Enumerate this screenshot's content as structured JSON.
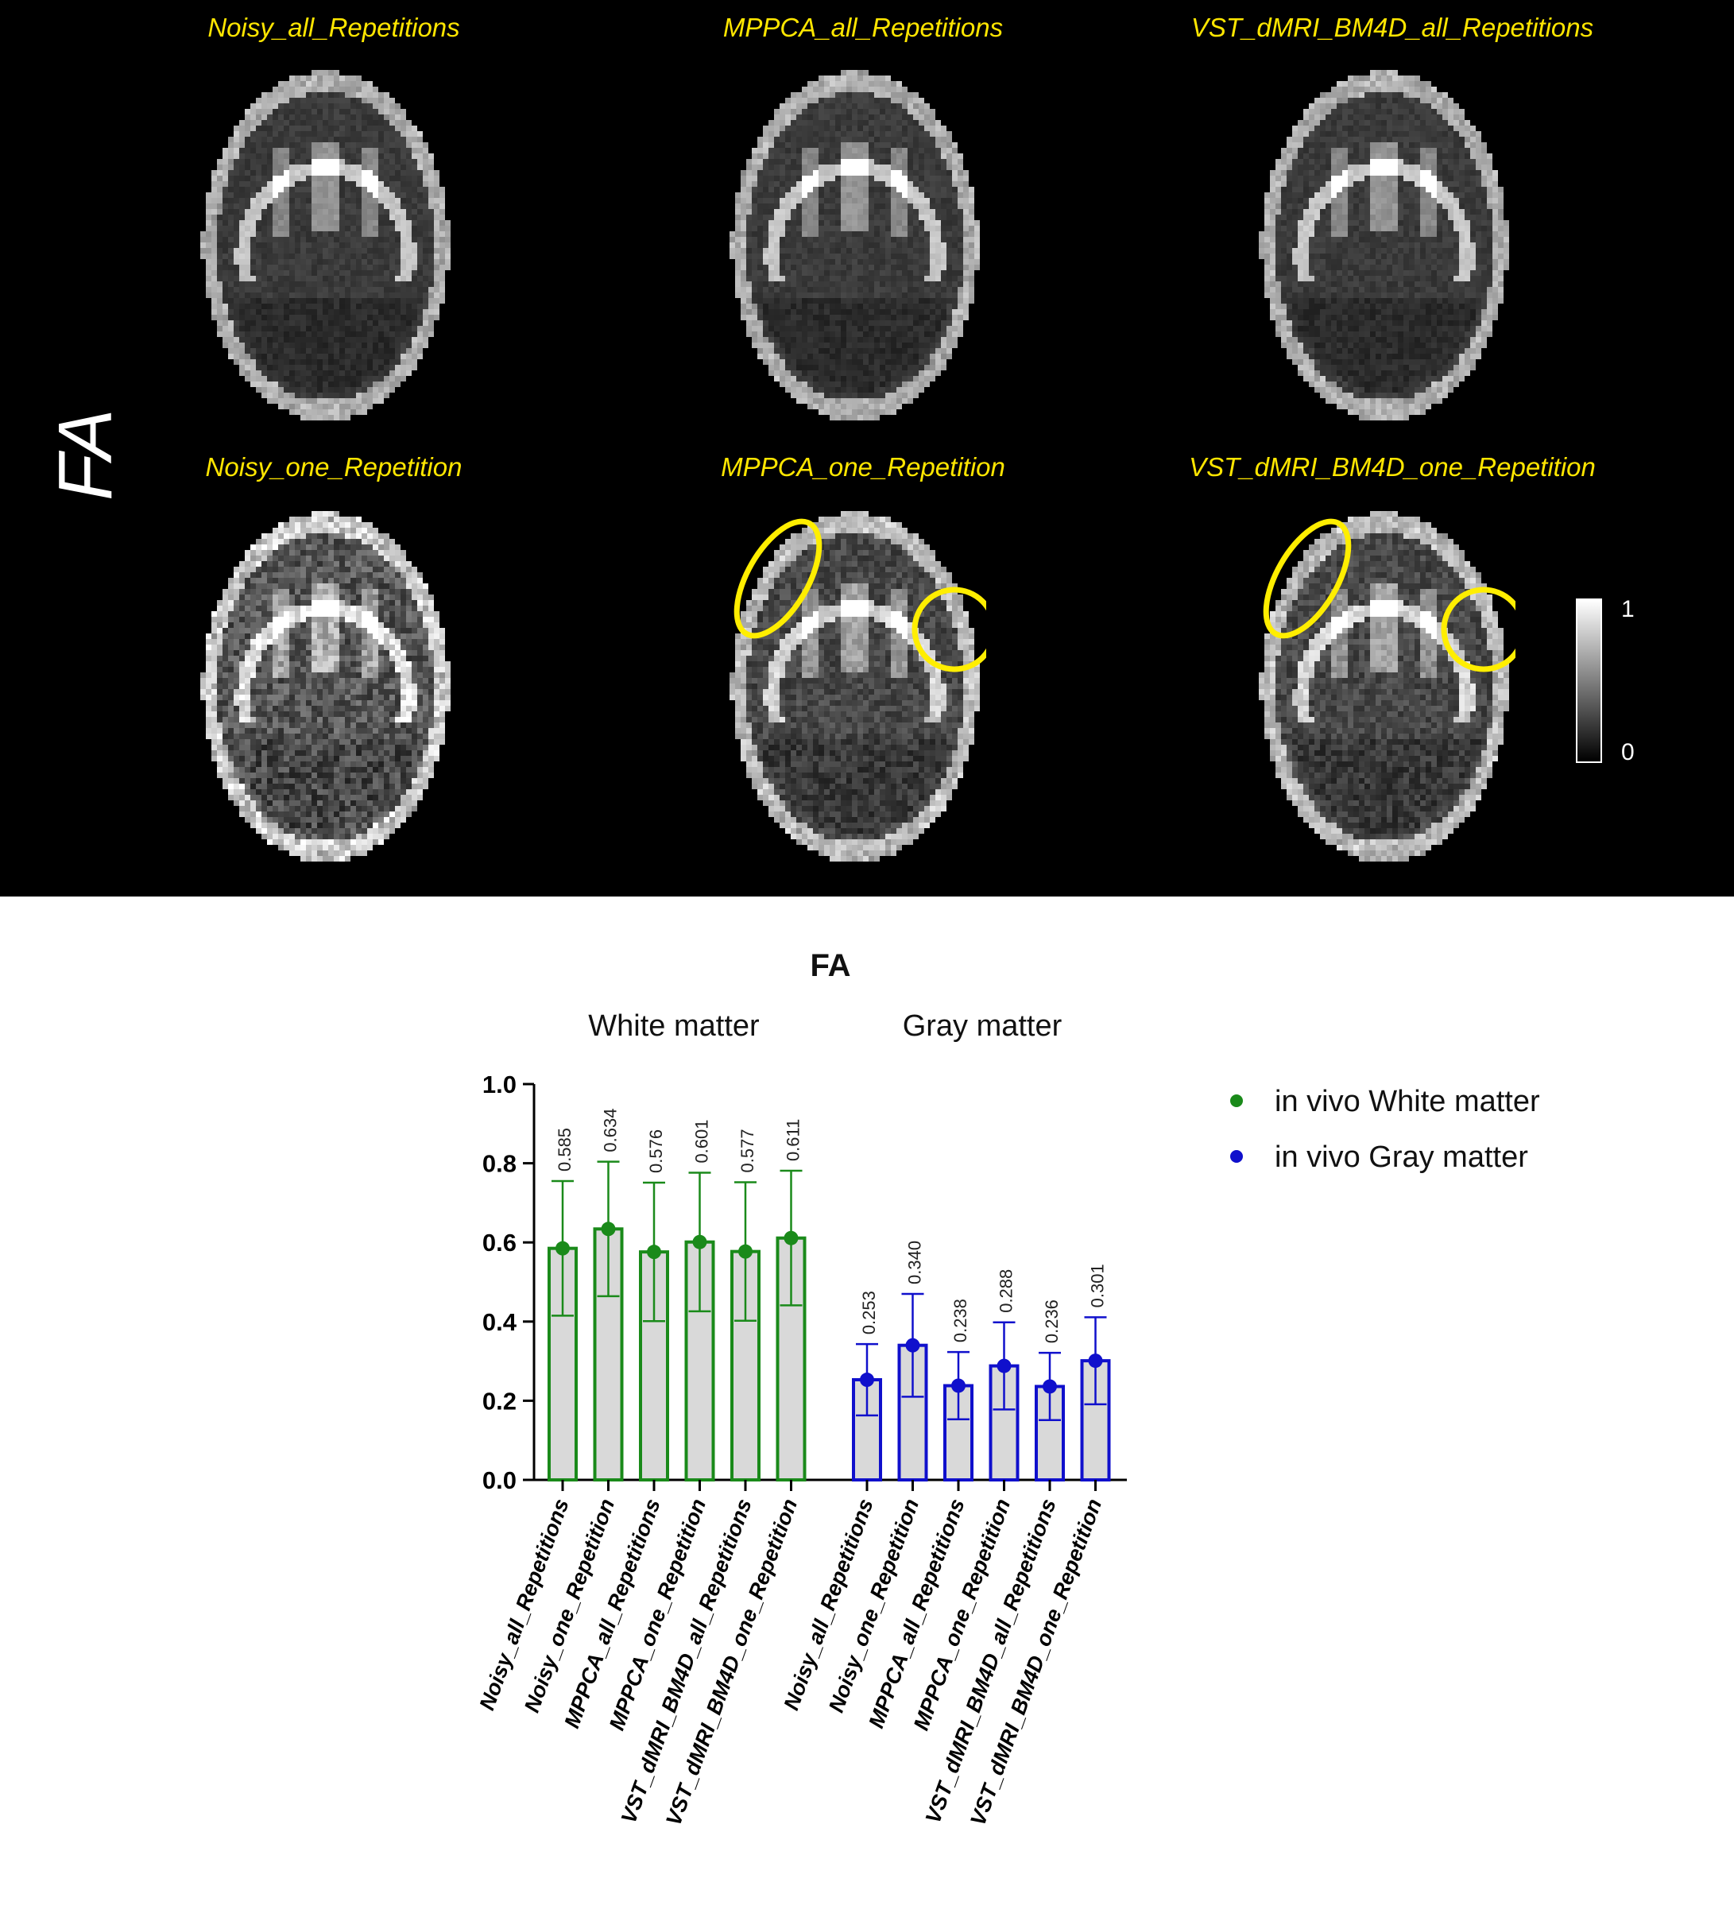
{
  "figure": {
    "side_label": "FA",
    "panels": [
      {
        "title": "Noisy_all_Repetitions",
        "noise": 0.1,
        "ellipse": false
      },
      {
        "title": "MPPCA_all_Repetitions",
        "noise": 0.1,
        "ellipse": false
      },
      {
        "title": "VST_dMRI_BM4D_all_Repetitions",
        "noise": 0.1,
        "ellipse": false
      },
      {
        "title": "Noisy_one_Repetition",
        "noise": 0.32,
        "ellipse": false
      },
      {
        "title": "MPPCA_one_Repetition",
        "noise": 0.2,
        "ellipse": true
      },
      {
        "title": "VST_dMRI_BM4D_one_Repetition",
        "noise": 0.2,
        "ellipse": true
      }
    ],
    "colorbar": {
      "max_label": "1",
      "min_label": "0"
    },
    "highlight_color": "#ffee00"
  },
  "chart_data": {
    "type": "bar",
    "title": "FA",
    "group_labels": [
      "White matter",
      "Gray matter"
    ],
    "ylim": [
      0,
      1.0
    ],
    "yticks": [
      "0.0",
      "0.2",
      "0.4",
      "0.6",
      "0.8",
      "1.0"
    ],
    "categories": [
      "Noisy_all_Repetitions",
      "Noisy_one_Repetition",
      "MPPCA_all_Repetitions",
      "MPPCA_one_Repetition",
      "VST_dMRI_BM4D_all_Repetitions",
      "VST_dMRI_BM4D_one_Repetition"
    ],
    "series": [
      {
        "name": "in vivo White matter",
        "color": "#1a8a1a",
        "values": [
          0.585,
          0.634,
          0.576,
          0.601,
          0.577,
          0.611
        ],
        "value_labels": [
          "0.585",
          "0.634",
          "0.576",
          "0.601",
          "0.577",
          "0.611"
        ],
        "error": [
          0.17,
          0.17,
          0.175,
          0.175,
          0.175,
          0.17
        ]
      },
      {
        "name": "in vivo Gray matter",
        "color": "#1010cc",
        "values": [
          0.253,
          0.34,
          0.238,
          0.288,
          0.236,
          0.301
        ],
        "value_labels": [
          "0.253",
          "0.340",
          "0.238",
          "0.288",
          "0.236",
          "0.301"
        ],
        "error": [
          0.09,
          0.13,
          0.085,
          0.11,
          0.085,
          0.11
        ]
      }
    ],
    "bar_fill": "#d9d9d9",
    "legend_position": "right"
  }
}
